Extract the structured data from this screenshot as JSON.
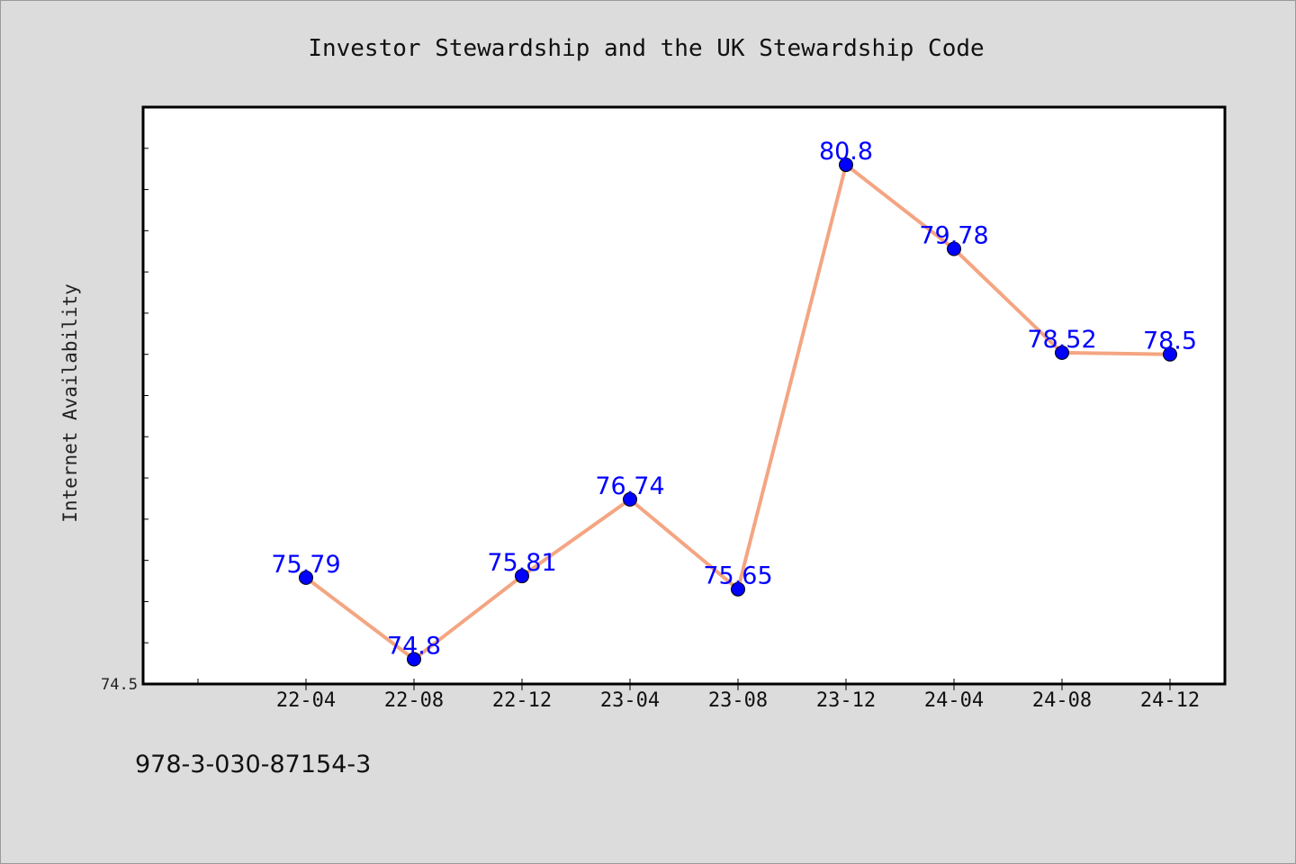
{
  "chart_data": {
    "type": "line",
    "title": "Investor Stewardship and the UK Stewardship Code",
    "xlabel": "",
    "ylabel": "Internet Availability",
    "categories": [
      "22-04",
      "22-08",
      "22-12",
      "23-04",
      "23-08",
      "23-12",
      "24-04",
      "24-08",
      "24-12"
    ],
    "series": [
      {
        "values": [
          75.79,
          74.8,
          75.81,
          76.74,
          75.65,
          80.8,
          79.78,
          78.52,
          78.5
        ],
        "data_labels": [
          "75.79",
          "74.8",
          "75.81",
          "76.74",
          "75.65",
          "80.8",
          "79.78",
          "78.52",
          "78.5"
        ]
      }
    ],
    "ylim": [
      74.5,
      81.5
    ],
    "y_tick_labels": [
      "74.5"
    ],
    "grid": false,
    "legend": "none",
    "colors": {
      "line": "#f4a582",
      "marker": "#0000ff",
      "data_label": "#0000ff",
      "plot_background": "#ffffff",
      "page_background": "#dcdcdc"
    }
  },
  "footer": {
    "isbn": "978-3-030-87154-3"
  }
}
